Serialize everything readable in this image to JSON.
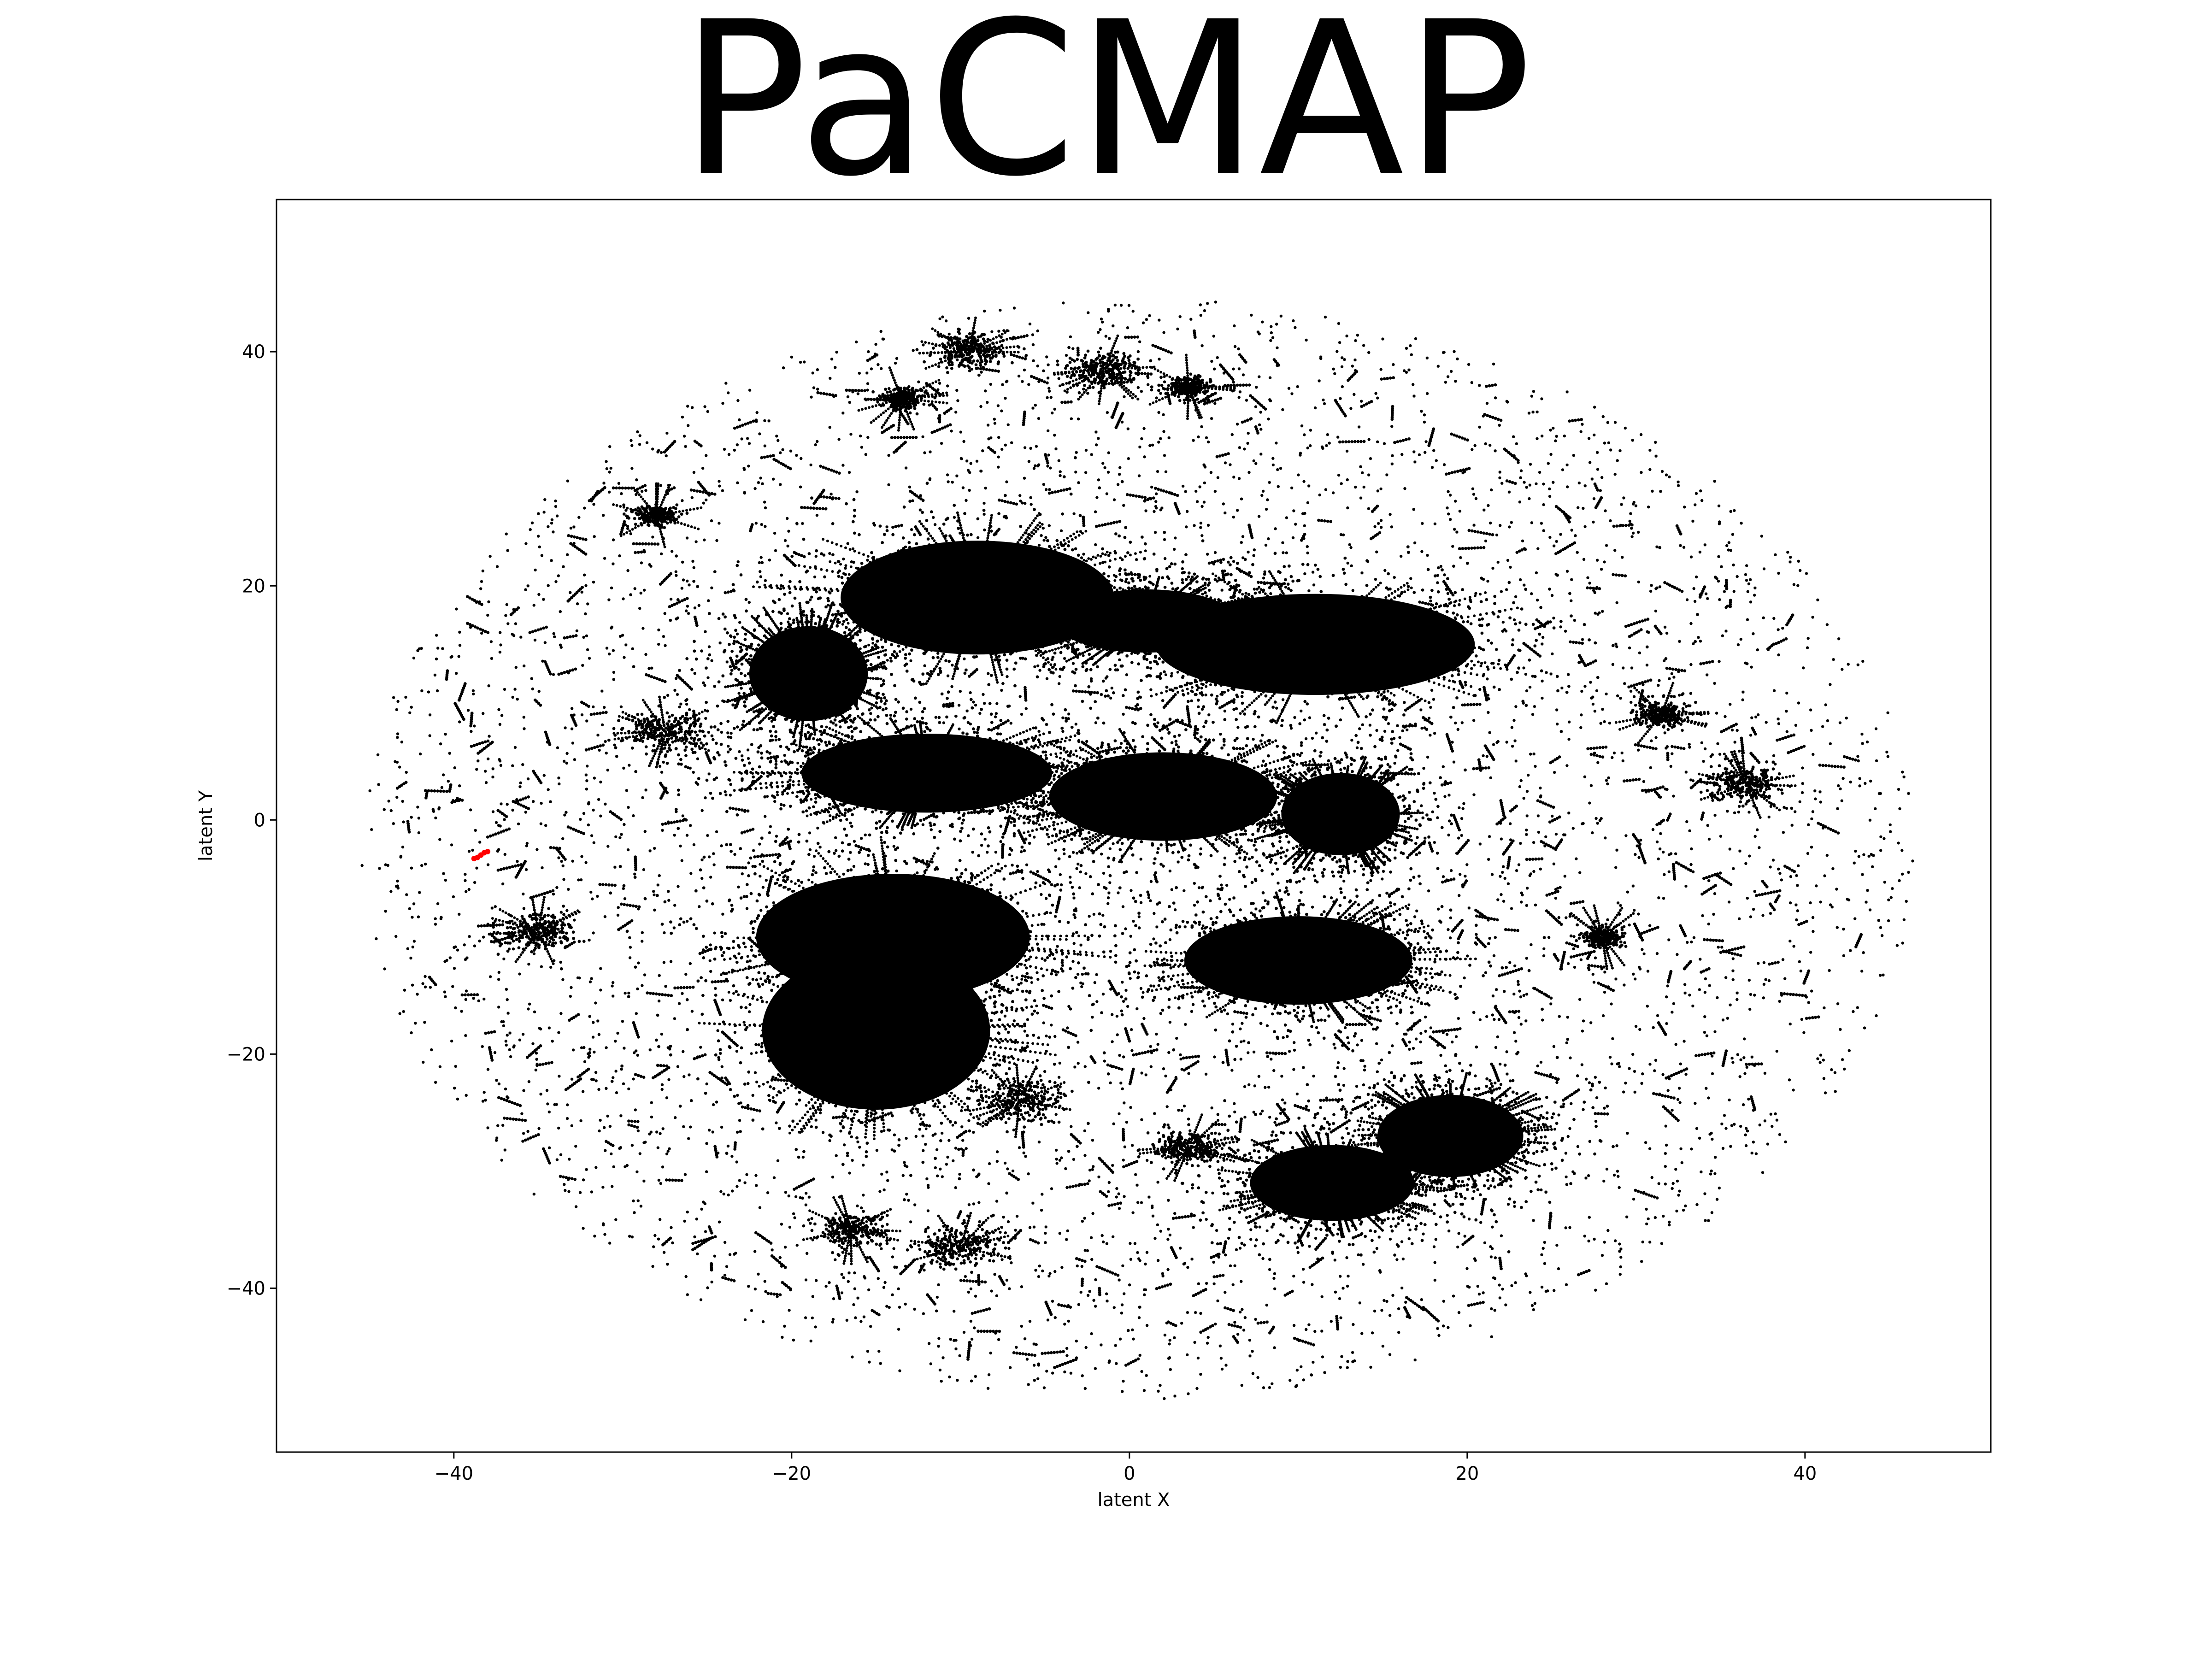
{
  "chart_data": {
    "type": "scatter",
    "title": "PaCMAP",
    "xlabel": "latent X",
    "ylabel": "latent Y",
    "xlim": [
      -50.5,
      51
    ],
    "ylim": [
      -54,
      53
    ],
    "x_ticks": [
      -40,
      -20,
      0,
      20,
      40
    ],
    "y_ticks": [
      -40,
      -20,
      0,
      20,
      40
    ],
    "x_tick_labels": [
      "−40",
      "−20",
      "0",
      "20",
      "40"
    ],
    "y_tick_labels": [
      "−40",
      "−20",
      "0",
      "20",
      "40"
    ],
    "grid": false,
    "legend": "none",
    "point_color": "#000000",
    "highlight_color": "#ff0000",
    "scatter_extent": {
      "center": [
        0.5,
        -2.5
      ],
      "x_radius": 46,
      "y_radius": 47
    },
    "dense_clusters": [
      {
        "x": -9,
        "y": 19,
        "sx": 6,
        "sy": 3.6
      },
      {
        "x": 11,
        "y": 15,
        "sx": 7,
        "sy": 3.2
      },
      {
        "x": 1,
        "y": 17,
        "sx": 4,
        "sy": 2
      },
      {
        "x": -19,
        "y": 12.5,
        "sx": 2.6,
        "sy": 3
      },
      {
        "x": -12,
        "y": 4,
        "sx": 5.5,
        "sy": 2.5
      },
      {
        "x": 2,
        "y": 2,
        "sx": 5,
        "sy": 2.8
      },
      {
        "x": 12.5,
        "y": 0.5,
        "sx": 2.6,
        "sy": 2.6
      },
      {
        "x": -14,
        "y": -10,
        "sx": 6,
        "sy": 4
      },
      {
        "x": -15,
        "y": -18,
        "sx": 5,
        "sy": 5
      },
      {
        "x": 10,
        "y": -12,
        "sx": 5,
        "sy": 2.8
      },
      {
        "x": 19,
        "y": -27,
        "sx": 3.2,
        "sy": 2.6
      },
      {
        "x": 12,
        "y": -31,
        "sx": 3.6,
        "sy": 2.4
      }
    ],
    "small_clusters": [
      {
        "x": -27.5,
        "y": 7.5,
        "s": 1.2
      },
      {
        "x": -35,
        "y": -9.5,
        "s": 1.0
      },
      {
        "x": -9.5,
        "y": 40,
        "s": 1.0
      },
      {
        "x": -1.5,
        "y": 38.5,
        "s": 1.1
      },
      {
        "x": 3.5,
        "y": 37,
        "s": 0.6
      },
      {
        "x": -13.5,
        "y": 36,
        "s": 0.6
      },
      {
        "x": -28,
        "y": 26,
        "s": 0.6
      },
      {
        "x": -10,
        "y": -36.5,
        "s": 1.1
      },
      {
        "x": -16.5,
        "y": -35,
        "s": 1.0
      },
      {
        "x": -6.5,
        "y": -24,
        "s": 1.3
      },
      {
        "x": 3.5,
        "y": -28,
        "s": 1.0
      },
      {
        "x": 31.5,
        "y": 9,
        "s": 0.7
      },
      {
        "x": 36.5,
        "y": 3,
        "s": 1.0
      },
      {
        "x": 28,
        "y": -10,
        "s": 0.6
      }
    ],
    "highlight_points": [
      [
        -38.6,
        -3.2
      ],
      [
        -38.4,
        -3.0
      ],
      [
        -38.2,
        -2.8
      ],
      [
        -38.0,
        -2.7
      ],
      [
        -38.8,
        -3.3
      ]
    ]
  }
}
